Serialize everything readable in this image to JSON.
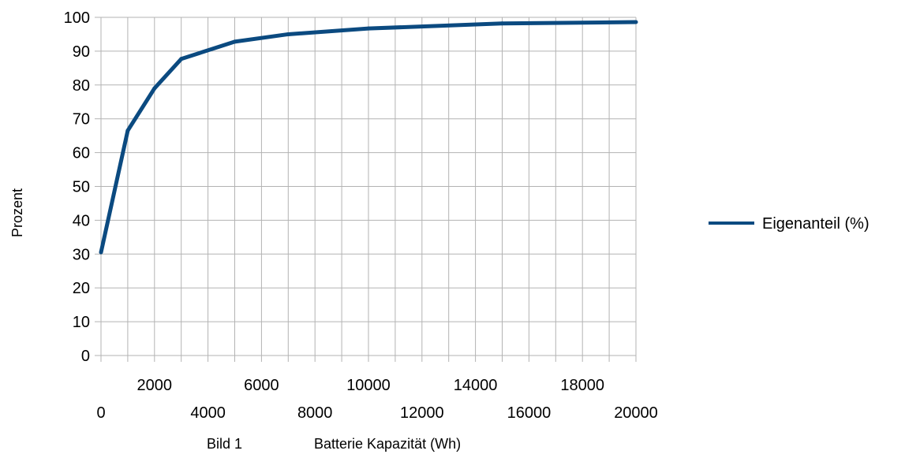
{
  "chart_data": {
    "type": "line",
    "title": "",
    "xlabel": "Batterie Kapazität (Wh)",
    "caption": "Bild 1",
    "ylabel": "Prozent",
    "x": [
      0,
      1000,
      2000,
      3000,
      5000,
      7000,
      10000,
      15000,
      20000
    ],
    "series": [
      {
        "name": "Eigenanteil (%)",
        "color": "#0b4a80",
        "values": [
          30.5,
          66.5,
          79,
          87.7,
          92.8,
          95,
          96.7,
          98.2,
          98.6
        ]
      }
    ],
    "xlim": [
      0,
      20000
    ],
    "ylim": [
      0,
      100
    ],
    "x_ticks": [
      0,
      2000,
      4000,
      6000,
      8000,
      10000,
      12000,
      14000,
      16000,
      18000,
      20000
    ],
    "x_minor_step": 1000,
    "y_ticks": [
      0,
      10,
      20,
      30,
      40,
      50,
      60,
      70,
      80,
      90,
      100
    ],
    "grid": true,
    "legend_position": "right"
  }
}
